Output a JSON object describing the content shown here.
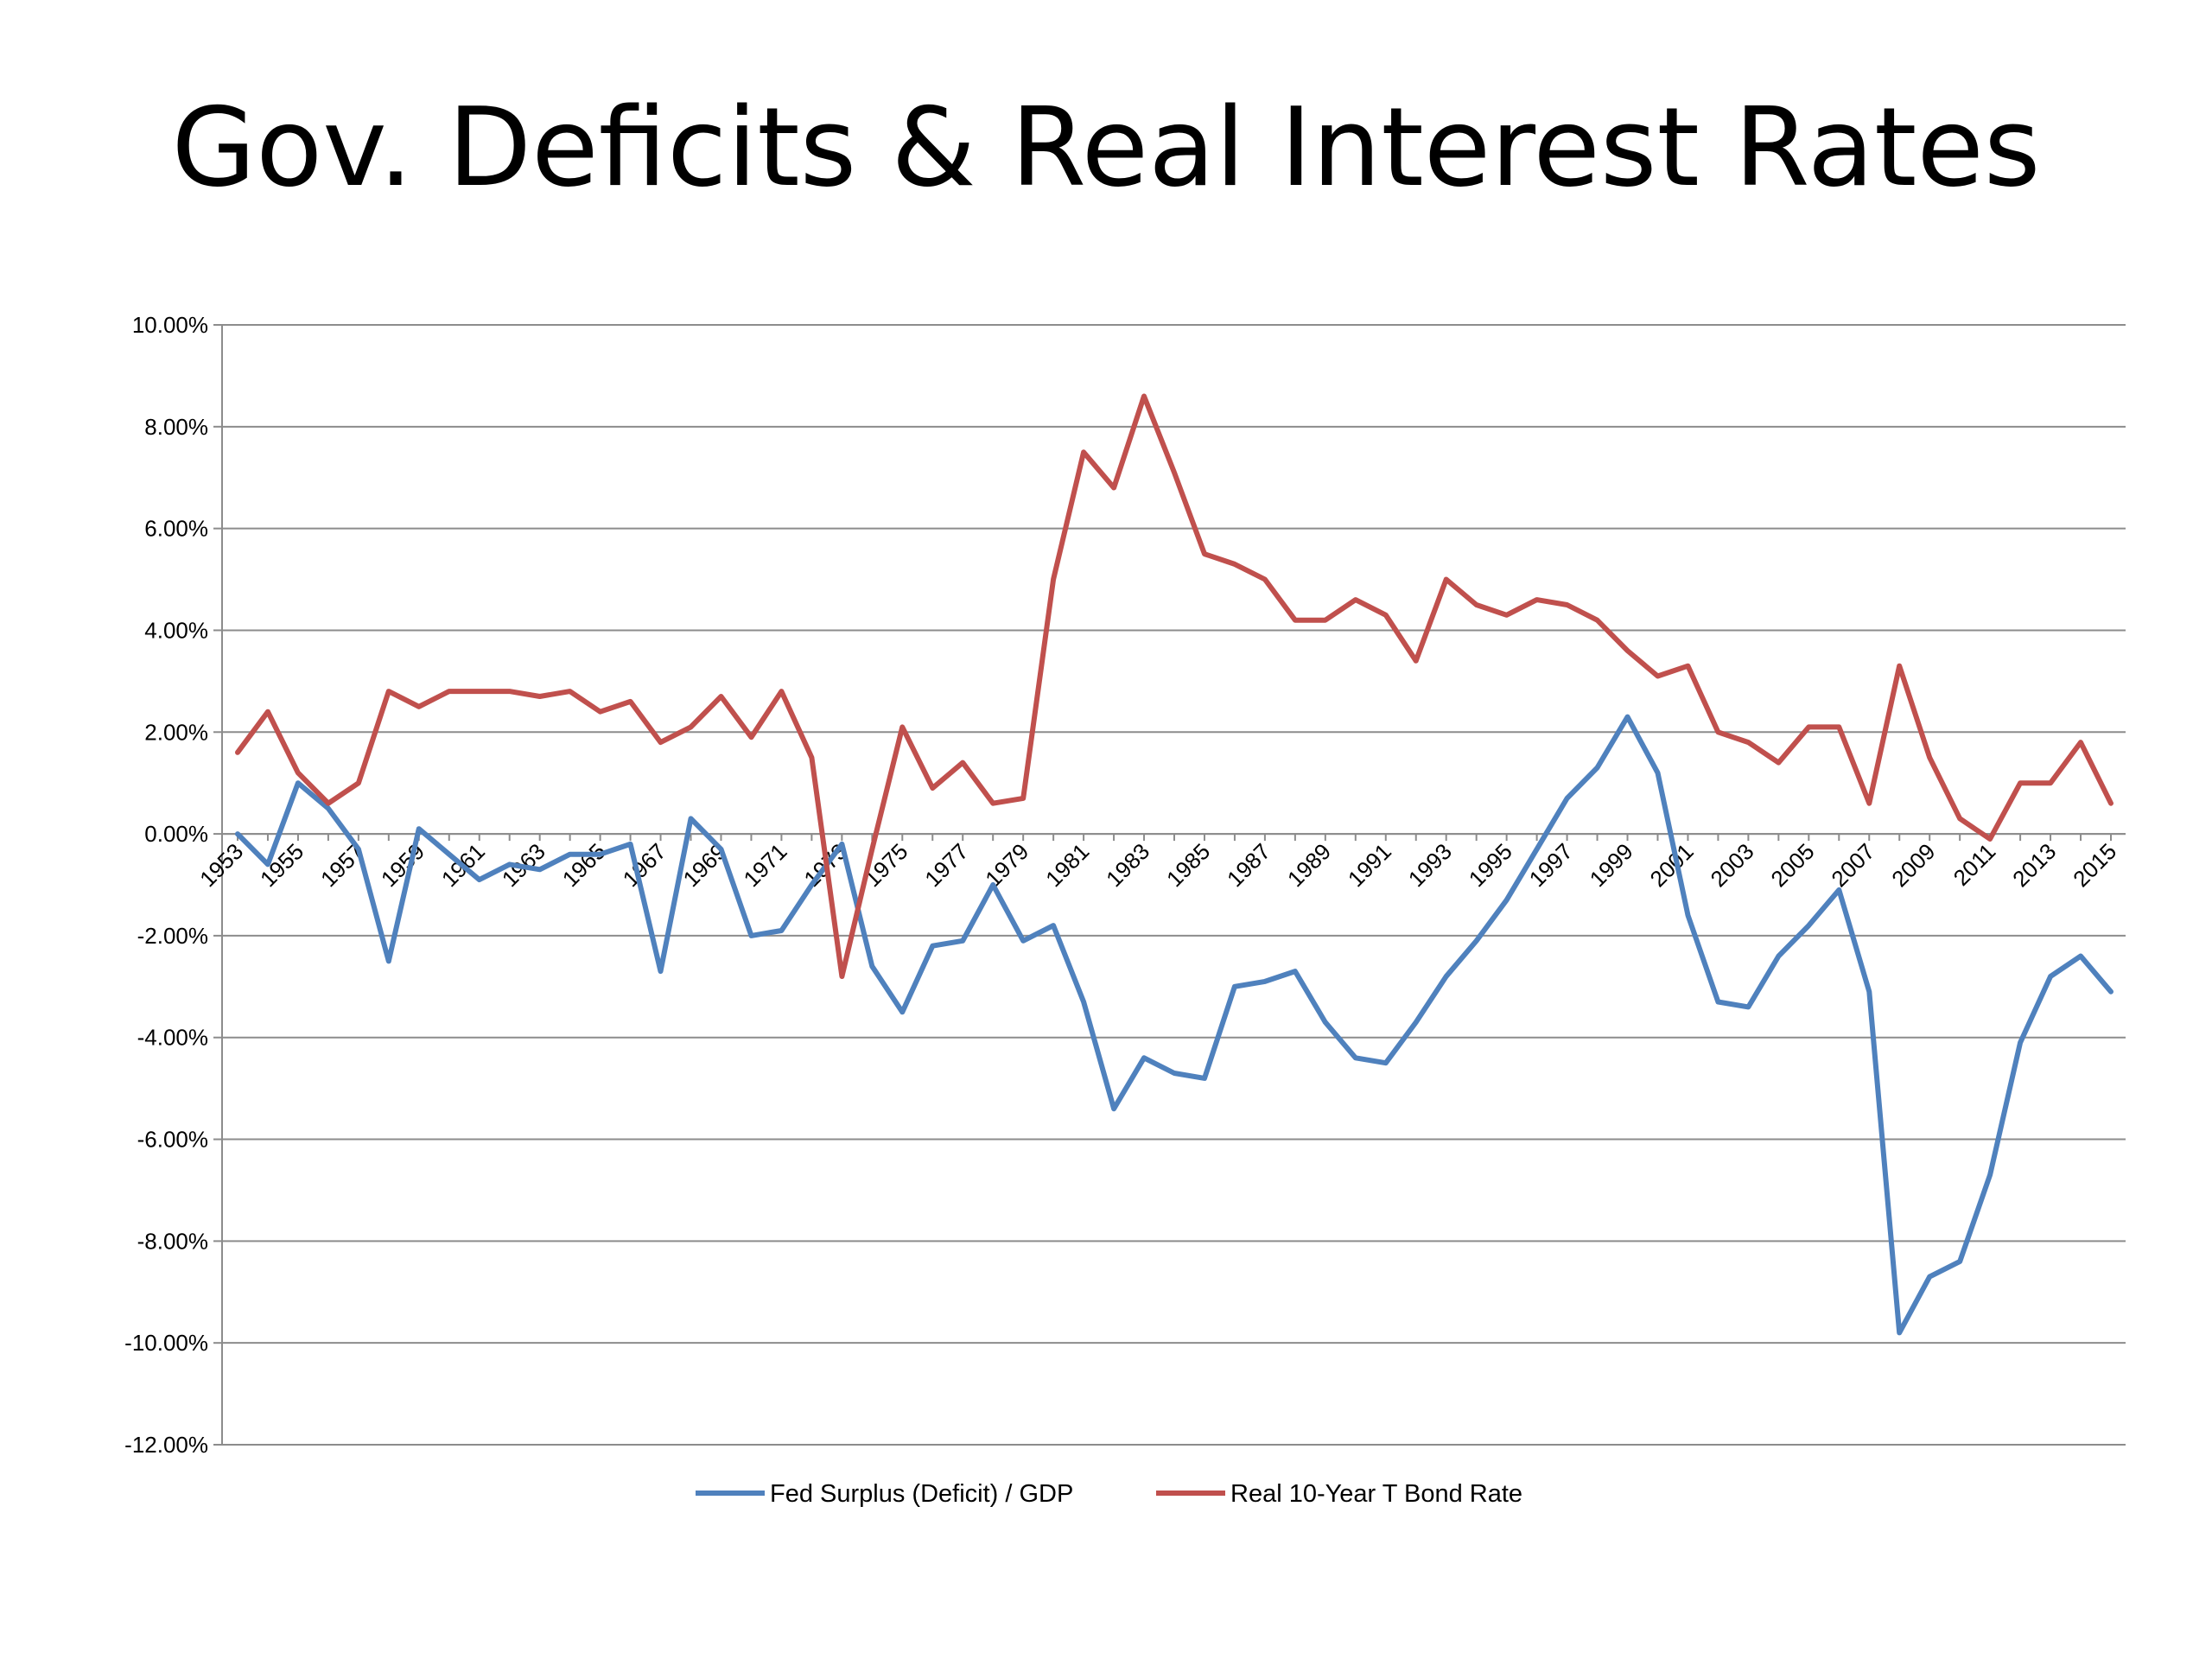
{
  "chart_data": {
    "type": "line",
    "title": "Gov. Deficits & Real Interest Rates",
    "xlabel": "",
    "ylabel": "",
    "ylim": [
      -12,
      10
    ],
    "y_ticks": [
      "10.00%",
      "8.00%",
      "6.00%",
      "4.00%",
      "2.00%",
      "0.00%",
      "-2.00%",
      "-4.00%",
      "-6.00%",
      "-8.00%",
      "-10.00%",
      "-12.00%"
    ],
    "y_tick_values": [
      10,
      8,
      6,
      4,
      2,
      0,
      -2,
      -4,
      -6,
      -8,
      -10,
      -12
    ],
    "x_tick_labels": [
      "1953",
      "1955",
      "1957",
      "1959",
      "1961",
      "1963",
      "1965",
      "1967",
      "1969",
      "1971",
      "1973",
      "1975",
      "1977",
      "1979",
      "1981",
      "1983",
      "1985",
      "1987",
      "1989",
      "1991",
      "1993",
      "1995",
      "1997",
      "1999",
      "2001",
      "2003",
      "2005",
      "2007",
      "2009",
      "2011",
      "2013",
      "2015"
    ],
    "grid": true,
    "legend_position": "bottom",
    "x": [
      1953,
      1954,
      1955,
      1956,
      1957,
      1958,
      1959,
      1960,
      1961,
      1962,
      1963,
      1964,
      1965,
      1966,
      1967,
      1968,
      1969,
      1970,
      1971,
      1972,
      1973,
      1974,
      1975,
      1976,
      1977,
      1978,
      1979,
      1980,
      1981,
      1982,
      1983,
      1984,
      1985,
      1986,
      1987,
      1988,
      1989,
      1990,
      1991,
      1992,
      1993,
      1994,
      1995,
      1996,
      1997,
      1998,
      1999,
      2000,
      2001,
      2002,
      2003,
      2004,
      2005,
      2006,
      2007,
      2008,
      2009,
      2010,
      2011,
      2012,
      2013,
      2014,
      2015
    ],
    "series": [
      {
        "name": "Fed Surplus (Deficit) / GDP",
        "color": "#4f81bd",
        "values": [
          0.0,
          -0.6,
          1.0,
          0.5,
          -0.3,
          -2.5,
          0.1,
          -0.4,
          -0.9,
          -0.6,
          -0.7,
          -0.4,
          -0.4,
          -0.2,
          -2.7,
          0.3,
          -0.3,
          -2.0,
          -1.9,
          -1.0,
          -0.2,
          -2.6,
          -3.5,
          -2.2,
          -2.1,
          -1.0,
          -2.1,
          -1.8,
          -3.3,
          -5.4,
          -4.4,
          -4.7,
          -4.8,
          -3.0,
          -2.9,
          -2.7,
          -3.7,
          -4.4,
          -4.5,
          -3.7,
          -2.8,
          -2.1,
          -1.3,
          -0.3,
          0.7,
          1.3,
          2.3,
          1.2,
          -1.6,
          -3.3,
          -3.4,
          -2.4,
          -1.8,
          -1.1,
          -3.1,
          -9.8,
          -8.7,
          -8.4,
          -6.7,
          -4.1,
          -2.8,
          -2.4,
          -3.1
        ]
      },
      {
        "name": "Real 10-Year T Bond Rate",
        "color": "#c0504d",
        "values": [
          1.6,
          2.4,
          1.2,
          0.6,
          1.0,
          2.8,
          2.5,
          2.8,
          2.8,
          2.8,
          2.7,
          2.8,
          2.4,
          2.6,
          1.8,
          2.1,
          2.7,
          1.9,
          2.8,
          1.5,
          -2.8,
          -0.3,
          2.1,
          0.9,
          1.4,
          0.6,
          0.7,
          5.0,
          7.5,
          6.8,
          8.6,
          7.1,
          5.5,
          5.3,
          5.0,
          4.2,
          4.2,
          4.6,
          4.3,
          3.4,
          5.0,
          4.5,
          4.3,
          4.6,
          4.5,
          4.2,
          3.6,
          3.1,
          3.3,
          2.0,
          1.8,
          1.4,
          2.1,
          2.1,
          0.6,
          3.3,
          1.5,
          0.3,
          -0.1,
          1.0,
          1.0,
          1.8,
          0.6
        ]
      }
    ]
  }
}
